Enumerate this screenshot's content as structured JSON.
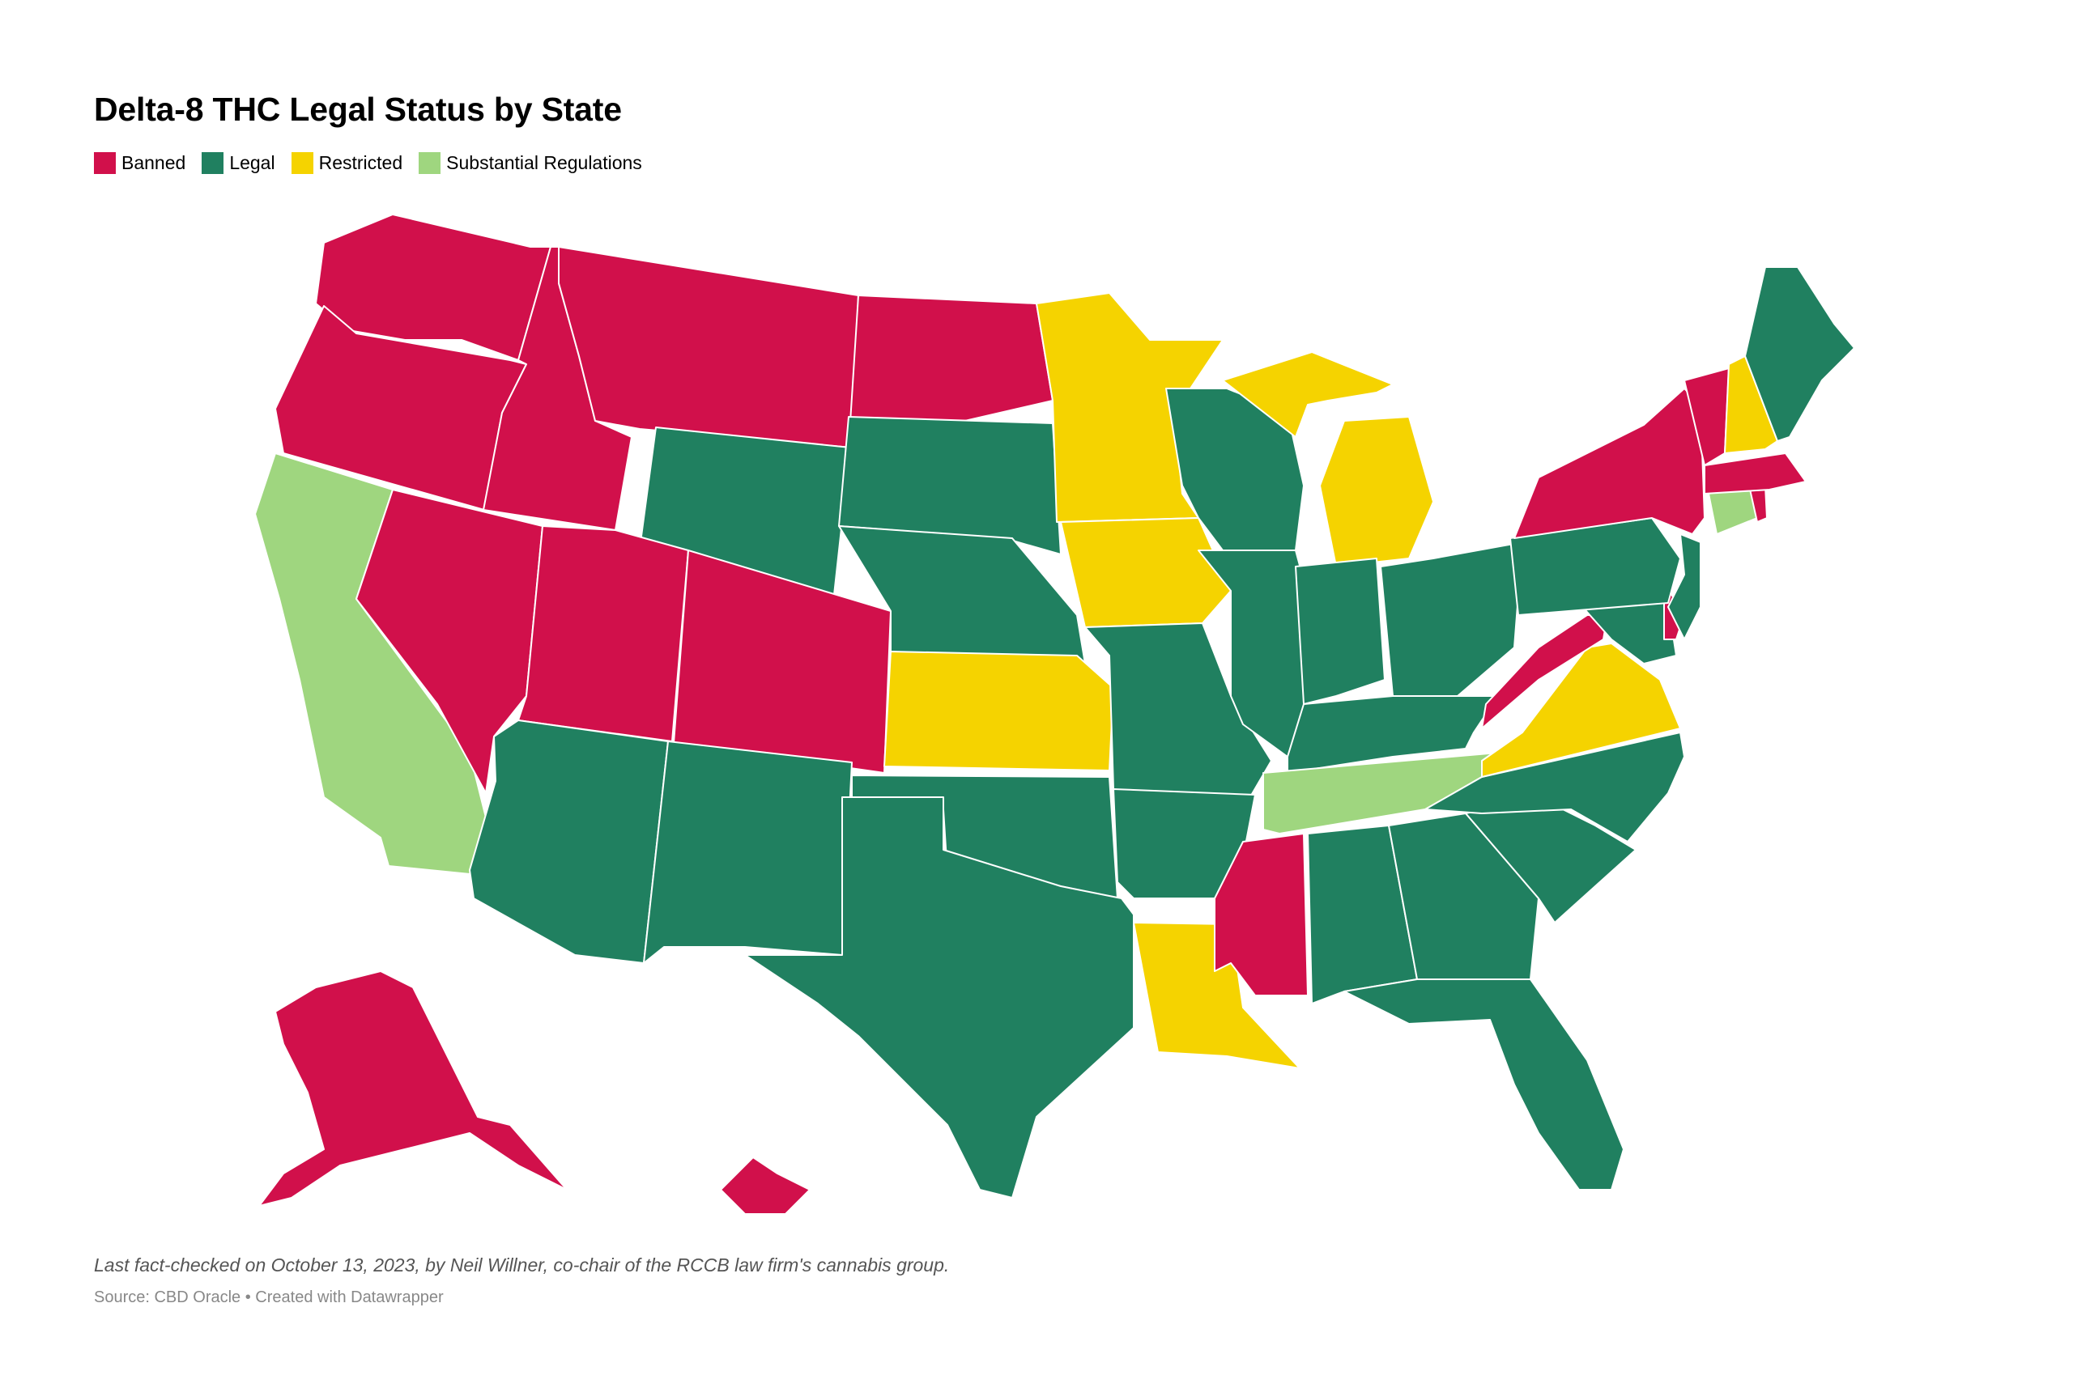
{
  "title": "Delta-8 THC Legal Status by State",
  "legend": [
    {
      "label": "Banned",
      "color": "#d1104b"
    },
    {
      "label": "Legal",
      "color": "#208060"
    },
    {
      "label": "Restricted",
      "color": "#f5d300"
    },
    {
      "label": "Substantial Regulations",
      "color": "#9fd67f"
    }
  ],
  "map": {
    "states": [
      {
        "state": "Washington",
        "status": "Banned"
      },
      {
        "state": "Oregon",
        "status": "Banned"
      },
      {
        "state": "California",
        "status": "Substantial Regulations"
      },
      {
        "state": "Nevada",
        "status": "Banned"
      },
      {
        "state": "Idaho",
        "status": "Banned"
      },
      {
        "state": "Montana",
        "status": "Banned"
      },
      {
        "state": "Wyoming",
        "status": "Legal"
      },
      {
        "state": "Utah",
        "status": "Banned"
      },
      {
        "state": "Colorado",
        "status": "Banned"
      },
      {
        "state": "Arizona",
        "status": "Legal"
      },
      {
        "state": "New Mexico",
        "status": "Legal"
      },
      {
        "state": "North Dakota",
        "status": "Banned"
      },
      {
        "state": "South Dakota",
        "status": "Legal"
      },
      {
        "state": "Nebraska",
        "status": "Legal"
      },
      {
        "state": "Kansas",
        "status": "Restricted"
      },
      {
        "state": "Oklahoma",
        "status": "Legal"
      },
      {
        "state": "Texas",
        "status": "Legal"
      },
      {
        "state": "Minnesota",
        "status": "Restricted"
      },
      {
        "state": "Iowa",
        "status": "Restricted"
      },
      {
        "state": "Missouri",
        "status": "Legal"
      },
      {
        "state": "Arkansas",
        "status": "Legal"
      },
      {
        "state": "Louisiana",
        "status": "Restricted"
      },
      {
        "state": "Wisconsin",
        "status": "Legal"
      },
      {
        "state": "Illinois",
        "status": "Legal"
      },
      {
        "state": "Michigan",
        "status": "Restricted"
      },
      {
        "state": "Indiana",
        "status": "Legal"
      },
      {
        "state": "Ohio",
        "status": "Legal"
      },
      {
        "state": "Kentucky",
        "status": "Legal"
      },
      {
        "state": "Tennessee",
        "status": "Substantial Regulations"
      },
      {
        "state": "Mississippi",
        "status": "Banned"
      },
      {
        "state": "Alabama",
        "status": "Legal"
      },
      {
        "state": "Georgia",
        "status": "Legal"
      },
      {
        "state": "Florida",
        "status": "Legal"
      },
      {
        "state": "South Carolina",
        "status": "Legal"
      },
      {
        "state": "North Carolina",
        "status": "Legal"
      },
      {
        "state": "Virginia",
        "status": "Restricted"
      },
      {
        "state": "West Virginia",
        "status": "Banned"
      },
      {
        "state": "Maryland",
        "status": "Legal"
      },
      {
        "state": "Delaware",
        "status": "Banned"
      },
      {
        "state": "Pennsylvania",
        "status": "Legal"
      },
      {
        "state": "New Jersey",
        "status": "Legal"
      },
      {
        "state": "New York",
        "status": "Banned"
      },
      {
        "state": "Connecticut",
        "status": "Substantial Regulations"
      },
      {
        "state": "Rhode Island",
        "status": "Banned"
      },
      {
        "state": "Massachusetts",
        "status": "Banned"
      },
      {
        "state": "Vermont",
        "status": "Banned"
      },
      {
        "state": "New Hampshire",
        "status": "Restricted"
      },
      {
        "state": "Maine",
        "status": "Legal"
      },
      {
        "state": "Alaska",
        "status": "Banned"
      },
      {
        "state": "Hawaii",
        "status": "Banned"
      }
    ]
  },
  "footer": {
    "note": "Last fact-checked on October 13, 2023, by Neil Willner, co-chair of the RCCB law firm's cannabis group.",
    "source": "Source: CBD Oracle • Created with Datawrapper"
  }
}
